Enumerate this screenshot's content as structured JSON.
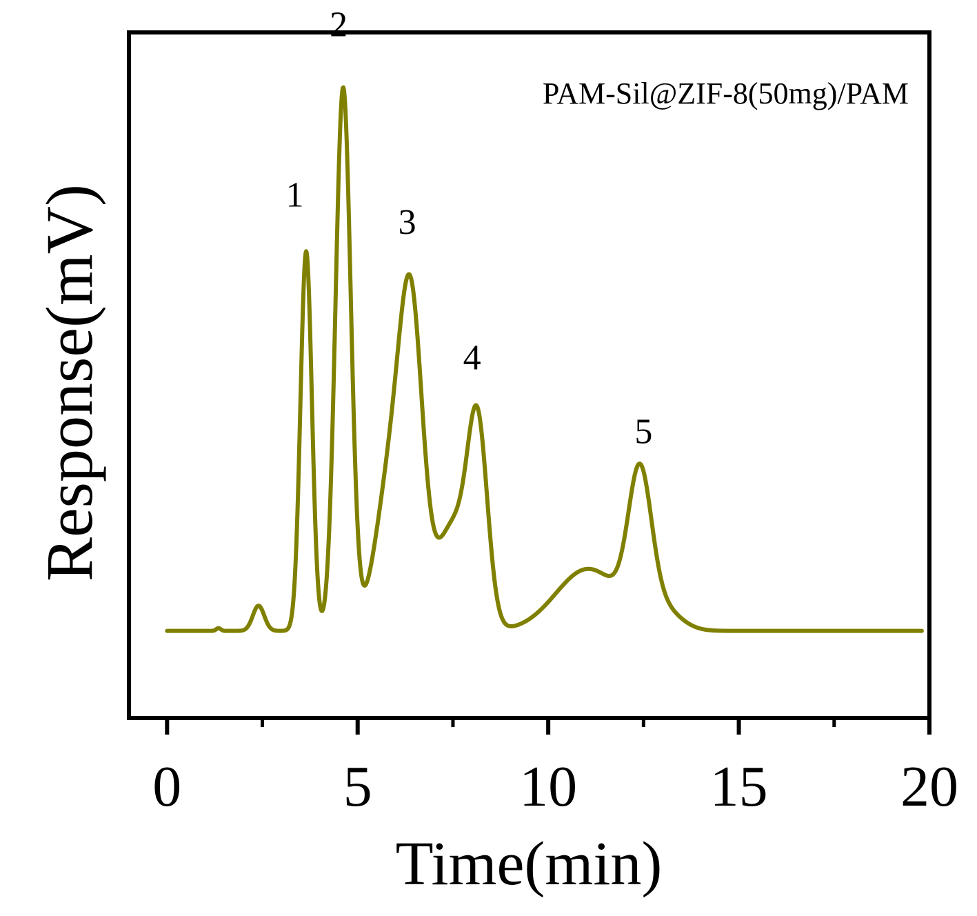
{
  "chart_data": {
    "type": "line",
    "title": "",
    "annotation": "PAM-Sil@ZIF-8(50mg)/PAM",
    "xlabel": "Time(min)",
    "ylabel": "Response(mV)",
    "xlim": [
      -1,
      20
    ],
    "ylim": [
      -22,
      155
    ],
    "x_ticks": [
      0,
      5,
      10,
      15,
      20
    ],
    "x_tick_labels": [
      "0",
      "5",
      "10",
      "15",
      "20"
    ],
    "grid": false,
    "legend": "none",
    "line_color": "#808000",
    "series": [
      {
        "name": "PAM-Sil@ZIF-8(50mg)/PAM",
        "baseline": 0.5,
        "x_range": [
          0,
          19.8
        ],
        "components": [
          {
            "center": 1.35,
            "height": 0.7,
            "width": 0.06
          },
          {
            "center": 2.4,
            "height": 6.5,
            "width": 0.15
          },
          {
            "center": 3.65,
            "height": 98,
            "width": 0.15
          },
          {
            "center": 4.62,
            "height": 140,
            "width": 0.2
          },
          {
            "center": 5.92,
            "height": 42,
            "width": 0.42
          },
          {
            "center": 6.42,
            "height": 68,
            "width": 0.3
          },
          {
            "center": 7.5,
            "height": 27,
            "width": 0.45
          },
          {
            "center": 8.15,
            "height": 48,
            "width": 0.26
          },
          {
            "center": 11.05,
            "height": 16,
            "width": 0.85
          },
          {
            "center": 12.4,
            "height": 35,
            "width": 0.3
          },
          {
            "center": 12.9,
            "height": 6,
            "width": 0.5
          }
        ]
      }
    ],
    "peak_labels": [
      {
        "label": "1",
        "x": 3.35,
        "y": 110
      },
      {
        "label": "2",
        "x": 4.5,
        "y": 154
      },
      {
        "label": "3",
        "x": 6.3,
        "y": 103
      },
      {
        "label": "4",
        "x": 8.0,
        "y": 68
      },
      {
        "label": "5",
        "x": 12.5,
        "y": 49
      }
    ]
  }
}
